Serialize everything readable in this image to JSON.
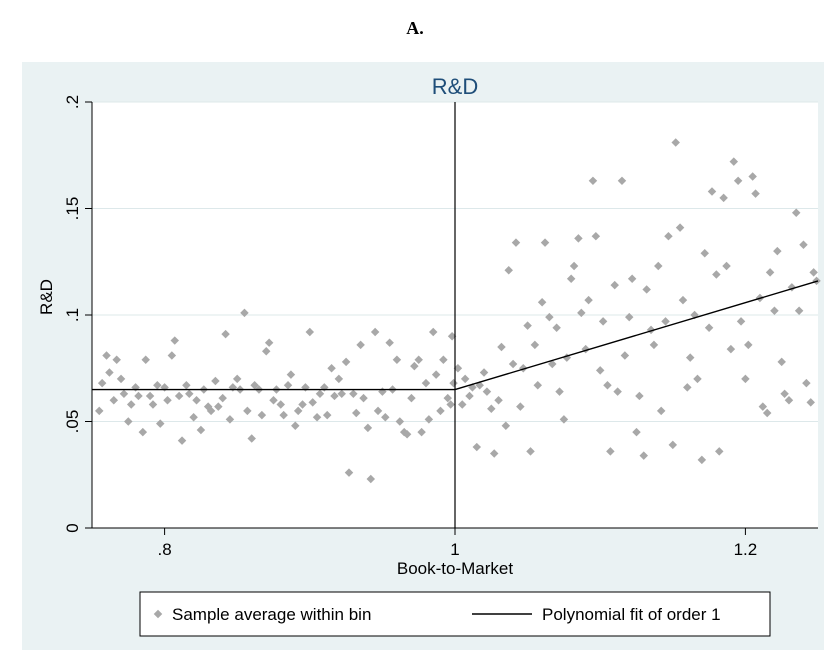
{
  "figure": {
    "panel_label": "A."
  },
  "colors": {
    "background": "#eaf2f3",
    "plot": "#ffffff",
    "grid": "#dde8ea",
    "title": "#1f4e79",
    "points": "#a8a8a8",
    "line": "#000000"
  },
  "chart_data": {
    "type": "scatter",
    "title": "R&D",
    "xlabel": "Book-to-Market",
    "ylabel": "R&D",
    "xlim": [
      0.75,
      1.25
    ],
    "ylim": [
      0,
      0.2
    ],
    "xticks": [
      {
        "value": 0.8,
        "label": ".8"
      },
      {
        "value": 1.0,
        "label": "1"
      },
      {
        "value": 1.2,
        "label": "1.2"
      }
    ],
    "yticks": [
      {
        "value": 0,
        "label": "0"
      },
      {
        "value": 0.05,
        "label": ".05"
      },
      {
        "value": 0.1,
        "label": ".1"
      },
      {
        "value": 0.15,
        "label": ".15"
      },
      {
        "value": 0.2,
        "label": ".2"
      }
    ],
    "grid": true,
    "cutoff": 1.0,
    "legend": {
      "placement": "bottom"
    },
    "series": [
      {
        "name": "Sample average within bin",
        "kind": "scatter",
        "points": [
          [
            0.755,
            0.055
          ],
          [
            0.757,
            0.068
          ],
          [
            0.76,
            0.081
          ],
          [
            0.762,
            0.073
          ],
          [
            0.765,
            0.06
          ],
          [
            0.767,
            0.079
          ],
          [
            0.77,
            0.07
          ],
          [
            0.772,
            0.063
          ],
          [
            0.775,
            0.05
          ],
          [
            0.777,
            0.058
          ],
          [
            0.78,
            0.066
          ],
          [
            0.782,
            0.062
          ],
          [
            0.785,
            0.045
          ],
          [
            0.787,
            0.079
          ],
          [
            0.79,
            0.062
          ],
          [
            0.792,
            0.058
          ],
          [
            0.795,
            0.067
          ],
          [
            0.797,
            0.049
          ],
          [
            0.8,
            0.066
          ],
          [
            0.802,
            0.06
          ],
          [
            0.805,
            0.081
          ],
          [
            0.807,
            0.088
          ],
          [
            0.81,
            0.062
          ],
          [
            0.812,
            0.041
          ],
          [
            0.815,
            0.067
          ],
          [
            0.817,
            0.063
          ],
          [
            0.82,
            0.052
          ],
          [
            0.822,
            0.06
          ],
          [
            0.825,
            0.046
          ],
          [
            0.827,
            0.065
          ],
          [
            0.83,
            0.057
          ],
          [
            0.832,
            0.055
          ],
          [
            0.835,
            0.069
          ],
          [
            0.837,
            0.057
          ],
          [
            0.84,
            0.061
          ],
          [
            0.842,
            0.091
          ],
          [
            0.845,
            0.051
          ],
          [
            0.847,
            0.066
          ],
          [
            0.85,
            0.07
          ],
          [
            0.852,
            0.065
          ],
          [
            0.855,
            0.101
          ],
          [
            0.857,
            0.055
          ],
          [
            0.86,
            0.042
          ],
          [
            0.862,
            0.067
          ],
          [
            0.865,
            0.065
          ],
          [
            0.867,
            0.053
          ],
          [
            0.87,
            0.083
          ],
          [
            0.872,
            0.087
          ],
          [
            0.875,
            0.06
          ],
          [
            0.877,
            0.065
          ],
          [
            0.88,
            0.058
          ],
          [
            0.882,
            0.053
          ],
          [
            0.885,
            0.067
          ],
          [
            0.887,
            0.072
          ],
          [
            0.89,
            0.048
          ],
          [
            0.892,
            0.055
          ],
          [
            0.895,
            0.058
          ],
          [
            0.897,
            0.066
          ],
          [
            0.9,
            0.092
          ],
          [
            0.902,
            0.059
          ],
          [
            0.905,
            0.052
          ],
          [
            0.907,
            0.063
          ],
          [
            0.91,
            0.066
          ],
          [
            0.912,
            0.053
          ],
          [
            0.915,
            0.075
          ],
          [
            0.917,
            0.062
          ],
          [
            0.92,
            0.07
          ],
          [
            0.922,
            0.063
          ],
          [
            0.925,
            0.078
          ],
          [
            0.927,
            0.026
          ],
          [
            0.93,
            0.063
          ],
          [
            0.932,
            0.054
          ],
          [
            0.935,
            0.086
          ],
          [
            0.937,
            0.061
          ],
          [
            0.94,
            0.047
          ],
          [
            0.942,
            0.023
          ],
          [
            0.945,
            0.092
          ],
          [
            0.947,
            0.055
          ],
          [
            0.95,
            0.064
          ],
          [
            0.952,
            0.052
          ],
          [
            0.955,
            0.087
          ],
          [
            0.957,
            0.065
          ],
          [
            0.96,
            0.079
          ],
          [
            0.962,
            0.05
          ],
          [
            0.965,
            0.045
          ],
          [
            0.967,
            0.044
          ],
          [
            0.97,
            0.061
          ],
          [
            0.972,
            0.076
          ],
          [
            0.975,
            0.079
          ],
          [
            0.977,
            0.045
          ],
          [
            0.98,
            0.068
          ],
          [
            0.982,
            0.051
          ],
          [
            0.985,
            0.092
          ],
          [
            0.987,
            0.072
          ],
          [
            0.99,
            0.055
          ],
          [
            0.992,
            0.079
          ],
          [
            0.995,
            0.061
          ],
          [
            0.997,
            0.058
          ],
          [
            0.998,
            0.09
          ],
          [
            0.999,
            0.068
          ],
          [
            1.002,
            0.075
          ],
          [
            1.005,
            0.058
          ],
          [
            1.007,
            0.07
          ],
          [
            1.01,
            0.062
          ],
          [
            1.012,
            0.066
          ],
          [
            1.015,
            0.038
          ],
          [
            1.017,
            0.067
          ],
          [
            1.02,
            0.073
          ],
          [
            1.022,
            0.064
          ],
          [
            1.025,
            0.056
          ],
          [
            1.027,
            0.035
          ],
          [
            1.03,
            0.06
          ],
          [
            1.032,
            0.085
          ],
          [
            1.035,
            0.048
          ],
          [
            1.037,
            0.121
          ],
          [
            1.04,
            0.077
          ],
          [
            1.042,
            0.134
          ],
          [
            1.045,
            0.057
          ],
          [
            1.047,
            0.075
          ],
          [
            1.05,
            0.095
          ],
          [
            1.052,
            0.036
          ],
          [
            1.055,
            0.086
          ],
          [
            1.057,
            0.067
          ],
          [
            1.06,
            0.106
          ],
          [
            1.062,
            0.134
          ],
          [
            1.065,
            0.099
          ],
          [
            1.067,
            0.077
          ],
          [
            1.07,
            0.094
          ],
          [
            1.072,
            0.064
          ],
          [
            1.075,
            0.051
          ],
          [
            1.077,
            0.08
          ],
          [
            1.08,
            0.117
          ],
          [
            1.082,
            0.123
          ],
          [
            1.085,
            0.136
          ],
          [
            1.087,
            0.101
          ],
          [
            1.09,
            0.084
          ],
          [
            1.092,
            0.107
          ],
          [
            1.095,
            0.163
          ],
          [
            1.097,
            0.137
          ],
          [
            1.1,
            0.074
          ],
          [
            1.102,
            0.097
          ],
          [
            1.105,
            0.067
          ],
          [
            1.107,
            0.036
          ],
          [
            1.11,
            0.114
          ],
          [
            1.112,
            0.064
          ],
          [
            1.115,
            0.163
          ],
          [
            1.117,
            0.081
          ],
          [
            1.12,
            0.099
          ],
          [
            1.122,
            0.117
          ],
          [
            1.125,
            0.045
          ],
          [
            1.127,
            0.062
          ],
          [
            1.13,
            0.034
          ],
          [
            1.132,
            0.112
          ],
          [
            1.135,
            0.093
          ],
          [
            1.137,
            0.086
          ],
          [
            1.14,
            0.123
          ],
          [
            1.142,
            0.055
          ],
          [
            1.145,
            0.097
          ],
          [
            1.147,
            0.137
          ],
          [
            1.15,
            0.039
          ],
          [
            1.152,
            0.181
          ],
          [
            1.155,
            0.141
          ],
          [
            1.157,
            0.107
          ],
          [
            1.16,
            0.066
          ],
          [
            1.162,
            0.08
          ],
          [
            1.165,
            0.1
          ],
          [
            1.167,
            0.07
          ],
          [
            1.17,
            0.032
          ],
          [
            1.172,
            0.129
          ],
          [
            1.175,
            0.094
          ],
          [
            1.177,
            0.158
          ],
          [
            1.18,
            0.119
          ],
          [
            1.182,
            0.036
          ],
          [
            1.185,
            0.155
          ],
          [
            1.187,
            0.123
          ],
          [
            1.19,
            0.084
          ],
          [
            1.192,
            0.172
          ],
          [
            1.195,
            0.163
          ],
          [
            1.197,
            0.097
          ],
          [
            1.2,
            0.07
          ],
          [
            1.202,
            0.086
          ],
          [
            1.205,
            0.165
          ],
          [
            1.207,
            0.157
          ],
          [
            1.21,
            0.108
          ],
          [
            1.212,
            0.057
          ],
          [
            1.215,
            0.054
          ],
          [
            1.217,
            0.12
          ],
          [
            1.22,
            0.102
          ],
          [
            1.222,
            0.13
          ],
          [
            1.225,
            0.078
          ],
          [
            1.227,
            0.063
          ],
          [
            1.23,
            0.06
          ],
          [
            1.232,
            0.113
          ],
          [
            1.235,
            0.148
          ],
          [
            1.237,
            0.102
          ],
          [
            1.24,
            0.133
          ],
          [
            1.242,
            0.068
          ],
          [
            1.245,
            0.059
          ],
          [
            1.247,
            0.12
          ],
          [
            1.249,
            0.116
          ]
        ]
      },
      {
        "name": "Polynomial fit of order 1",
        "kind": "line",
        "segments": [
          [
            [
              0.75,
              0.065
            ],
            [
              1.0,
              0.065
            ]
          ],
          [
            [
              1.0,
              0.065
            ],
            [
              1.25,
              0.116
            ]
          ]
        ]
      }
    ]
  }
}
